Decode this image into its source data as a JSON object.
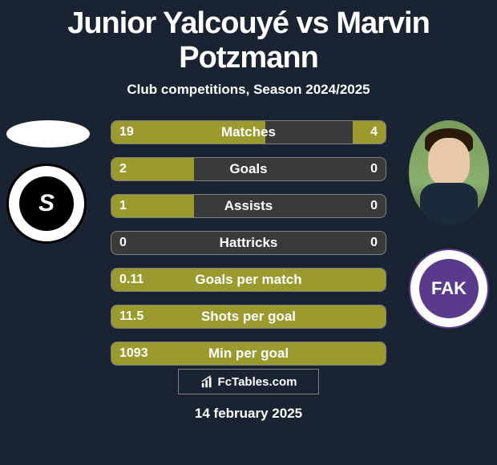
{
  "title": "Junior Yalcouyé vs Marvin Potzmann",
  "subtitle": "Club competitions, Season 2024/2025",
  "colors": {
    "background": "#1a2332",
    "bar_fill": "#9a9a2e",
    "bar_empty": "#3a3a3a",
    "bar_border": "#808080",
    "text": "#ffffff"
  },
  "bars": [
    {
      "label": "Matches",
      "left": "19",
      "right": "4",
      "left_pct": 56,
      "right_pct": 12
    },
    {
      "label": "Goals",
      "left": "2",
      "right": "0",
      "left_pct": 30,
      "right_pct": 0
    },
    {
      "label": "Assists",
      "left": "1",
      "right": "0",
      "left_pct": 30,
      "right_pct": 0
    },
    {
      "label": "Hattricks",
      "left": "0",
      "right": "0",
      "left_pct": 0,
      "right_pct": 0
    },
    {
      "label": "Goals per match",
      "left": "0.11",
      "right": "",
      "left_pct": 100,
      "right_pct": 0,
      "full": true
    },
    {
      "label": "Shots per goal",
      "left": "11.5",
      "right": "",
      "left_pct": 100,
      "right_pct": 0,
      "full": true
    },
    {
      "label": "Min per goal",
      "left": "1093",
      "right": "",
      "left_pct": 100,
      "right_pct": 0,
      "full": true
    }
  ],
  "player1": {
    "club_text": "S"
  },
  "player2": {
    "club_text": "FAK"
  },
  "footer": {
    "logo_text": "FcTables.com",
    "date": "14 february 2025"
  }
}
